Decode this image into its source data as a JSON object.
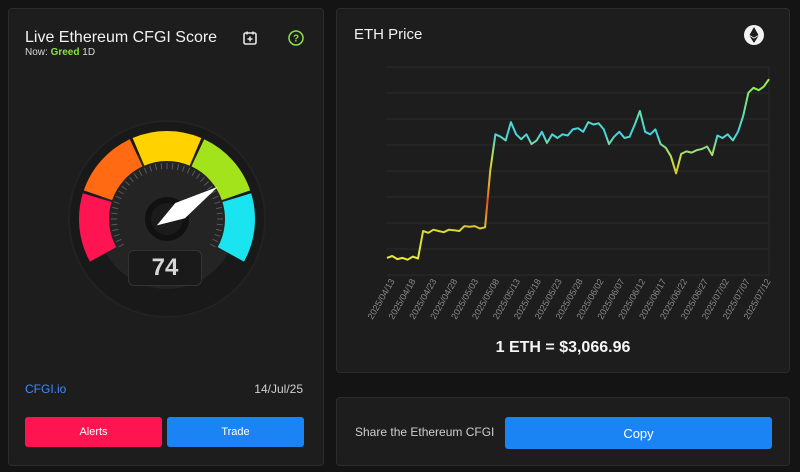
{
  "fear_greed": {
    "title": "Live Ethereum CFGI Score",
    "now_label": "Now:",
    "sentiment": "Greed",
    "timeframe": "1D",
    "score": "74",
    "score_value": 74,
    "source": "CFGI.io",
    "date": "14/Jul/25",
    "alerts_label": "Alerts",
    "trade_label": "Trade",
    "segment_colors": [
      "#ff1452",
      "#ff6a13",
      "#ffd200",
      "#a3e31b",
      "#19e4f0"
    ]
  },
  "price_chart": {
    "title": "ETH Price",
    "price_text": "1 ETH = $3,066.96"
  },
  "share": {
    "text": "Share the Ethereum CFGI",
    "copy_label": "Copy"
  },
  "chart_data": {
    "type": "line",
    "title": "ETH Price",
    "xlabel": "",
    "ylabel": "",
    "grid": true,
    "x_tick_labels": [
      "2025/04/13",
      "2025/04/18",
      "2025/04/23",
      "2025/04/28",
      "2025/05/03",
      "2025/05/08",
      "2025/05/13",
      "2025/05/18",
      "2025/05/23",
      "2025/05/28",
      "2025/06/02",
      "2025/06/07",
      "2025/06/12",
      "2025/06/17",
      "2025/06/22",
      "2025/06/27",
      "2025/07/02",
      "2025/07/07",
      "2025/07/12"
    ],
    "ylim": [
      1450,
      3150
    ],
    "series": [
      {
        "values": [
          1590,
          1605,
          1580,
          1590,
          1575,
          1600,
          1585,
          1810,
          1795,
          1820,
          1810,
          1800,
          1820,
          1815,
          1810,
          1850,
          1845,
          1850,
          1830,
          1840,
          2300,
          2600,
          2580,
          2550,
          2700,
          2600,
          2560,
          2600,
          2520,
          2550,
          2620,
          2530,
          2600,
          2570,
          2600,
          2590,
          2640,
          2650,
          2620,
          2700,
          2680,
          2690,
          2640,
          2520,
          2580,
          2620,
          2570,
          2580,
          2680,
          2790,
          2620,
          2600,
          2640,
          2520,
          2490,
          2420,
          2280,
          2440,
          2460,
          2450,
          2470,
          2480,
          2500,
          2430,
          2590,
          2570,
          2600,
          2550,
          2620,
          2750,
          2940,
          2980,
          2960,
          2990,
          3050
        ]
      }
    ]
  }
}
